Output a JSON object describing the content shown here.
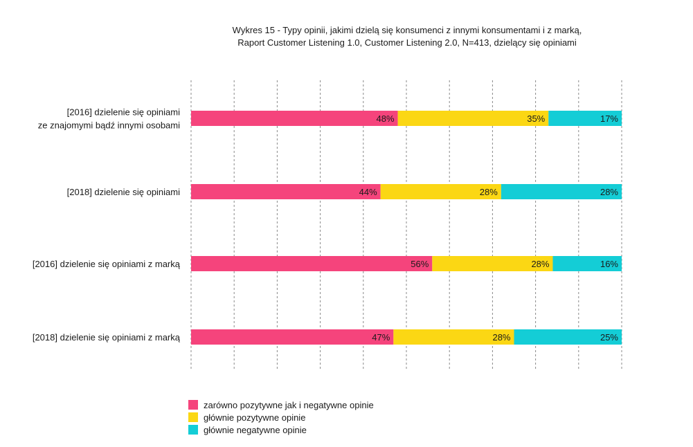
{
  "chart_data": {
    "type": "bar",
    "orientation": "horizontal",
    "stacked": true,
    "title_lines": [
      "Wykres 15 - Typy opinii, jakimi dzielą się konsumenci z innymi konsumentami i z marką,",
      "Raport Customer Listening 1.0, Customer Listening 2.0, N=413, dzielący się opiniami"
    ],
    "categories": [
      [
        "[2016] dzielenie się opiniami",
        "ze znajomymi bądź innymi osobami"
      ],
      [
        "[2018] dzielenie się opiniami"
      ],
      [
        "[2016] dzielenie się opiniami z marką"
      ],
      [
        "[2018] dzielenie się opiniami z marką"
      ]
    ],
    "series": [
      {
        "name": "zarówno pozytywne jak i negatywne opinie",
        "color": "#f5447c",
        "values": [
          48,
          44,
          56,
          47
        ],
        "labels": [
          "48%",
          "44%",
          "56%",
          "47%"
        ]
      },
      {
        "name": "głównie pozytywne opinie",
        "color": "#fbd714",
        "values": [
          35,
          28,
          28,
          28
        ],
        "labels": [
          "35%",
          "28%",
          "28%",
          "28%"
        ]
      },
      {
        "name": "głównie negatywne opinie",
        "color": "#14cdd6",
        "values": [
          17,
          28,
          16,
          25
        ],
        "labels": [
          "17%",
          "28%",
          "16%",
          "25%"
        ]
      }
    ],
    "xlim": [
      0,
      100
    ],
    "grid": "vertical dashed",
    "legend_position": "bottom-left",
    "value_label_position": "inside-end"
  }
}
